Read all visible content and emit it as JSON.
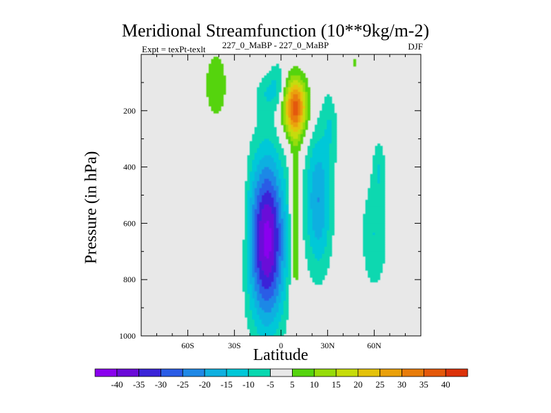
{
  "chart_data": {
    "type": "heatmap",
    "title": "Meridional Streamfunction (10**9kg/m-2)",
    "subtitle": "227_0_MaBP - 227_0_MaBP",
    "left_string": "Expt = texPt-texlt",
    "right_string": "DJF",
    "xlabel": "Latitude",
    "ylabel": "Pressure (in hPa)",
    "xlim": [
      -90,
      90
    ],
    "ylim": [
      1000,
      0
    ],
    "x_ticks": [
      -60,
      -30,
      0,
      30,
      60
    ],
    "x_tick_labels": [
      "60S",
      "30S",
      "0",
      "30N",
      "60N"
    ],
    "y_ticks": [
      200,
      400,
      600,
      800,
      1000
    ],
    "y_tick_labels": [
      "200",
      "400",
      "600",
      "800",
      "1000"
    ],
    "contour_levels": [
      -40,
      -35,
      -30,
      -25,
      -20,
      -15,
      -10,
      -5,
      5,
      10,
      15,
      20,
      25,
      30,
      35,
      40
    ],
    "colorbar_labels": [
      "-40",
      "-35",
      "-30",
      "-25",
      "-20",
      "-15",
      "-10",
      "-5",
      "5",
      "10",
      "15",
      "20",
      "25",
      "30",
      "35",
      "40"
    ],
    "colors": [
      "#8a00ee",
      "#6a0ad8",
      "#3a24d8",
      "#2a5ce6",
      "#1f88e6",
      "#0fb0e0",
      "#00c8d8",
      "#08d8b0",
      "#e8e8e8",
      "#55d40f",
      "#96dc0a",
      "#c6dc0a",
      "#e4c20a",
      "#eaa00a",
      "#e87c0a",
      "#e4580a",
      "#dc320a"
    ],
    "background_color": "#e8e8e8",
    "features": [
      {
        "name": "southern-hadley-cell-min",
        "type": "negative",
        "lat": -9,
        "lat_halfwidth": 15,
        "p_center": 660,
        "p_halfwidth": 380,
        "peak": -42
      },
      {
        "name": "southern-upper-lobe-1",
        "type": "negative",
        "lat": -2,
        "lat_halfwidth": 7,
        "p_center": 110,
        "p_halfwidth": 110,
        "peak": -10
      },
      {
        "name": "southern-upper-lobe-2",
        "type": "negative",
        "lat": -10,
        "lat_halfwidth": 8,
        "p_center": 140,
        "p_halfwidth": 90,
        "peak": -7
      },
      {
        "name": "equatorial-upper-max",
        "type": "positive",
        "lat": 9,
        "lat_halfwidth": 10,
        "p_center": 190,
        "p_halfwidth": 130,
        "peak": 36
      },
      {
        "name": "equatorial-column",
        "type": "positive",
        "lat": 9,
        "lat_halfwidth": 4,
        "p_center": 600,
        "p_halfwidth": 380,
        "peak": 14
      },
      {
        "name": "northern-cell",
        "type": "negative",
        "lat": 24,
        "lat_halfwidth": 11,
        "p_center": 520,
        "p_halfwidth": 320,
        "peak": -20
      },
      {
        "name": "northern-upper-arm",
        "type": "negative",
        "lat": 33,
        "lat_halfwidth": 7,
        "p_center": 220,
        "p_halfwidth": 170,
        "peak": -10
      },
      {
        "name": "midlat-north-column",
        "type": "negative",
        "lat": 60,
        "lat_halfwidth": 11,
        "p_center": 640,
        "p_halfwidth": 260,
        "peak": -10
      },
      {
        "name": "midlat-north-upper",
        "type": "negative",
        "lat": 63,
        "lat_halfwidth": 5,
        "p_center": 400,
        "p_halfwidth": 130,
        "peak": -8
      },
      {
        "name": "southern-midlat-ferrel-upper",
        "type": "positive",
        "lat": -42,
        "lat_halfwidth": 9,
        "p_center": 110,
        "p_halfwidth": 150,
        "peak": 10
      },
      {
        "name": "southern-midlat-ferrel-lower",
        "type": "positive",
        "lat": -27,
        "lat_halfwidth": 5,
        "p_center": 530,
        "p_halfwidth": 300,
        "peak": 8
      },
      {
        "name": "northern-upper-positive",
        "type": "positive",
        "lat": 37,
        "lat_halfwidth": 7,
        "p_center": 140,
        "p_halfwidth": 150,
        "peak": 8
      },
      {
        "name": "northern-small-positive",
        "type": "positive",
        "lat": 47,
        "lat_halfwidth": 2,
        "p_center": 30,
        "p_halfwidth": 30,
        "peak": 7
      }
    ]
  }
}
